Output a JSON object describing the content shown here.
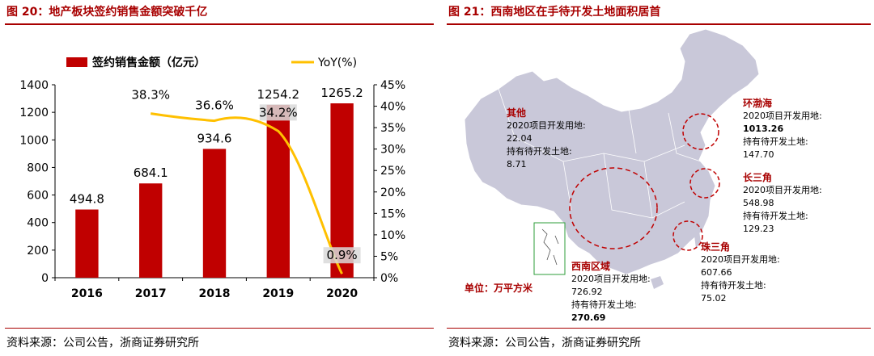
{
  "left_panel": {
    "title": "图 20：地产板块签约销售金额突破千亿",
    "source": "资料来源：公司公告，浙商证券研究所"
  },
  "right_panel": {
    "title": "图 21：西南地区在手待开发土地面积居首",
    "source": "资料来源：公司公告，浙商证券研究所",
    "unit_label": "单位：万平方米",
    "line1_label": "2020项目开发用地:",
    "line2_label": "持有待开发土地:",
    "regions": [
      {
        "name": "其他",
        "dev_2020": "22.04",
        "pending": "8.71",
        "bold_dev": false,
        "bold_pending": false
      },
      {
        "name": "环渤海",
        "dev_2020": "1013.26",
        "pending": "147.70",
        "bold_dev": true,
        "bold_pending": false
      },
      {
        "name": "长三角",
        "dev_2020": "548.98",
        "pending": "129.23",
        "bold_dev": false,
        "bold_pending": false
      },
      {
        "name": "珠三角",
        "dev_2020": "607.66",
        "pending": "75.02",
        "bold_dev": false,
        "bold_pending": false
      },
      {
        "name": "西南区域",
        "dev_2020": "726.92",
        "pending": "270.69",
        "bold_dev": false,
        "bold_pending": true
      }
    ]
  },
  "chart_data": {
    "type": "bar",
    "categories": [
      "2016",
      "2017",
      "2018",
      "2019",
      "2020"
    ],
    "series": [
      {
        "name": "签约销售金额（亿元）",
        "type": "bar",
        "axis": "left",
        "values": [
          494.8,
          684.1,
          934.6,
          1254.2,
          1265.2
        ],
        "labels": [
          "494.8",
          "684.1",
          "934.6",
          "1254.2",
          "1265.2"
        ]
      },
      {
        "name": "YoY(%)",
        "type": "line",
        "axis": "right",
        "x": [
          "2017",
          "2018",
          "2019",
          "2020"
        ],
        "values": [
          38.3,
          36.6,
          34.2,
          0.9
        ],
        "labels": [
          "38.3%",
          "36.6%",
          "34.2%",
          "0.9%"
        ]
      }
    ],
    "yticks_left": [
      "0",
      "200",
      "400",
      "600",
      "800",
      "1000",
      "1200",
      "1400"
    ],
    "yticks_right": [
      "0%",
      "5%",
      "10%",
      "15%",
      "20%",
      "25%",
      "30%",
      "35%",
      "40%",
      "45%"
    ],
    "ylim_left": [
      0,
      1400
    ],
    "ylim_right": [
      0,
      45
    ],
    "legend_position": "top",
    "grid": false,
    "colors": {
      "bar": "#c00000",
      "line": "#ffc000"
    }
  }
}
